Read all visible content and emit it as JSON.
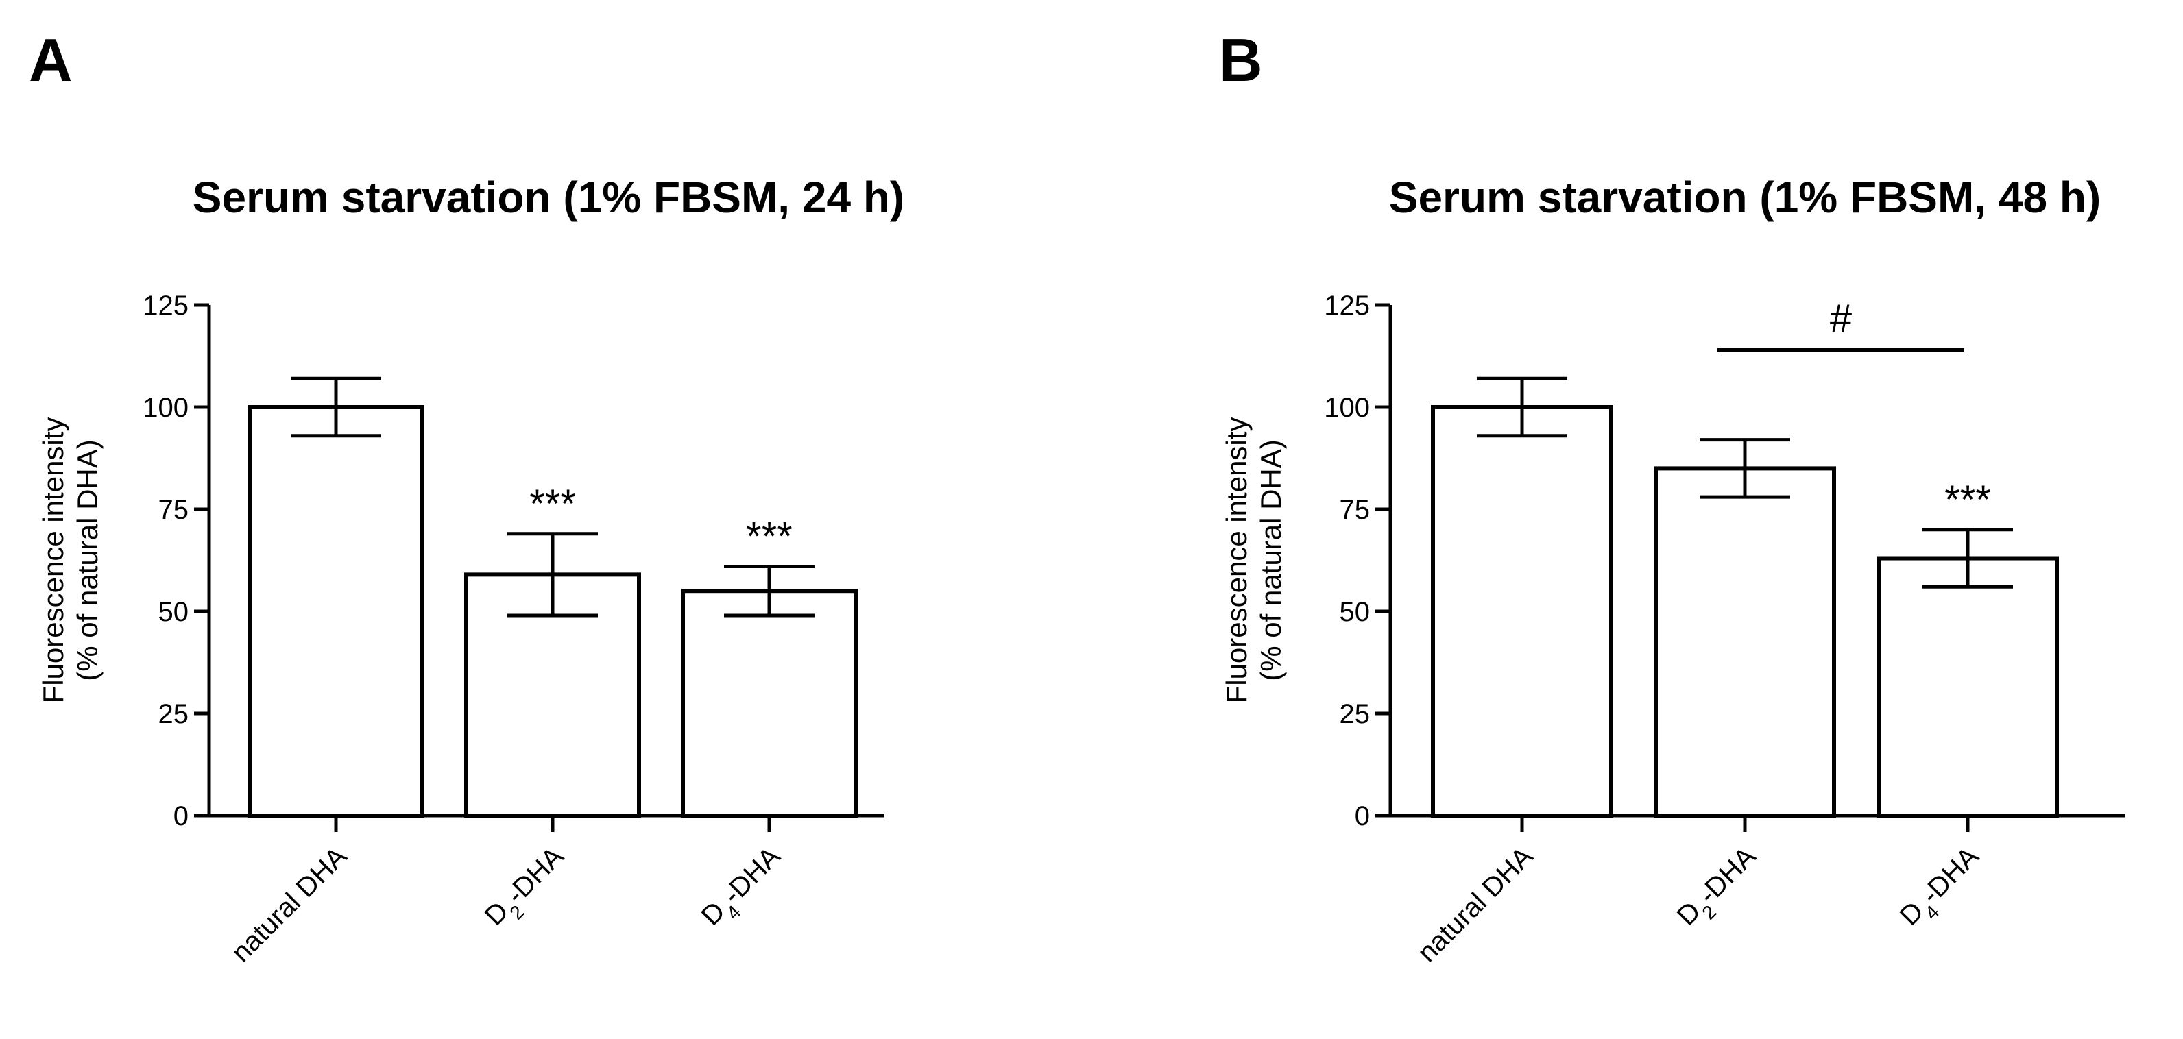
{
  "chart_data": [
    {
      "type": "bar",
      "panel_label": "A",
      "title": "Serum starvation (1% FBSM, 24 h)",
      "ylabel_lines": [
        "Fluorescence intensity",
        "(% of natural DHA)"
      ],
      "categories": [
        {
          "text": "natural DHA",
          "sub": "",
          "rest": ""
        },
        {
          "text": "D",
          "sub": "2",
          "rest": "-DHA"
        },
        {
          "text": "D",
          "sub": "4",
          "rest": "-DHA"
        }
      ],
      "values": [
        100,
        59,
        55
      ],
      "errors": [
        7,
        10,
        6
      ],
      "significance": [
        "",
        "***",
        "***"
      ],
      "yticks": [
        0,
        25,
        50,
        75,
        100,
        125
      ],
      "ylim": [
        0,
        125
      ],
      "bracket": null
    },
    {
      "type": "bar",
      "panel_label": "B",
      "title": "Serum starvation (1% FBSM, 48 h)",
      "ylabel_lines": [
        "Fluorescence intensity",
        "(% of natural DHA)"
      ],
      "categories": [
        {
          "text": "natural DHA",
          "sub": "",
          "rest": ""
        },
        {
          "text": "D",
          "sub": "2",
          "rest": "-DHA"
        },
        {
          "text": "D",
          "sub": "4",
          "rest": "-DHA"
        }
      ],
      "values": [
        100,
        85,
        63
      ],
      "errors": [
        7,
        7,
        7
      ],
      "significance": [
        "",
        "",
        "***"
      ],
      "yticks": [
        0,
        25,
        50,
        75,
        100,
        125
      ],
      "ylim": [
        0,
        125
      ],
      "bracket": {
        "from": 1,
        "to": 2,
        "y": 114,
        "label": "#"
      }
    }
  ]
}
